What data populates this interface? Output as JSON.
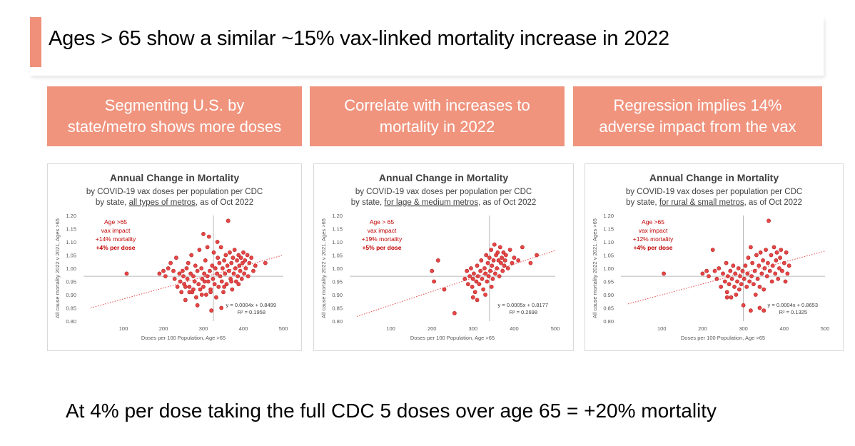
{
  "slide": {
    "title": "Ages > 65 show a similar ~15% vax-linked mortality increase in 2022",
    "headers": [
      "Segmenting U.S. by\nstate/metro shows more doses",
      "Correlate with increases to\nmortality in 2022",
      "Regression implies 14%\nadverse impact from the vax"
    ],
    "footer": "At 4% per dose taking the full CDC 5 doses over age 65 = +20% mortality",
    "accent_color": "#f0907a"
  },
  "chart_data": [
    {
      "type": "scatter",
      "title": "Annual Change in Mortality",
      "subtitle_line1": "by COVID-19 vax doses per population per CDC",
      "subtitle_prefix": "by state, ",
      "subtitle_underline": "all types of metros",
      "subtitle_suffix": ", as of Oct 2022",
      "xlabel": "Doses per 100 Population, Age >65",
      "ylabel": "All cause mortality 2022 v 2021, Ages >65",
      "xlim": [
        0,
        500
      ],
      "ylim": [
        0.8,
        1.2
      ],
      "xticks": [
        "100",
        "200",
        "300",
        "400",
        "500"
      ],
      "yticks": [
        "0.80",
        "0.85",
        "0.90",
        "0.95",
        "1.00",
        "1.05",
        "1.10",
        "1.15",
        "1.20"
      ],
      "annotation": [
        "Age >65",
        "vax impact",
        "+14% mortality",
        "+4% per dose"
      ],
      "equation": "y = 0.0004x + 0.8499",
      "r2": "R² = 0.1958",
      "trend": {
        "slope": 0.0004,
        "intercept": 0.8499
      },
      "ref_x": 325,
      "ref_y": 0.97,
      "point_color": "#e64646",
      "points": [
        [
          108,
          0.98
        ],
        [
          190,
          0.98
        ],
        [
          200,
          0.99
        ],
        [
          205,
          0.97
        ],
        [
          212,
          1.0
        ],
        [
          218,
          1.02
        ],
        [
          225,
          0.99
        ],
        [
          228,
          0.96
        ],
        [
          232,
          1.04
        ],
        [
          235,
          0.93
        ],
        [
          240,
          0.98
        ],
        [
          242,
          0.95
        ],
        [
          245,
          0.91
        ],
        [
          248,
          0.99
        ],
        [
          250,
          0.97
        ],
        [
          252,
          0.94
        ],
        [
          255,
          0.88
        ],
        [
          258,
          1.0
        ],
        [
          260,
          0.96
        ],
        [
          262,
          1.02
        ],
        [
          265,
          0.93
        ],
        [
          268,
          0.98
        ],
        [
          270,
          1.05
        ],
        [
          272,
          0.91
        ],
        [
          275,
          0.97
        ],
        [
          278,
          0.95
        ],
        [
          280,
          1.01
        ],
        [
          282,
          0.89
        ],
        [
          285,
          0.99
        ],
        [
          288,
          0.94
        ],
        [
          290,
          1.07
        ],
        [
          292,
          0.92
        ],
        [
          295,
          1.0
        ],
        [
          297,
          0.96
        ],
        [
          300,
          0.93
        ],
        [
          302,
          0.98
        ],
        [
          305,
          1.03
        ],
        [
          307,
          0.9
        ],
        [
          310,
          0.97
        ],
        [
          312,
          0.95
        ],
        [
          314,
          1.12
        ],
        [
          316,
          0.99
        ],
        [
          318,
          0.92
        ],
        [
          320,
          0.84
        ],
        [
          322,
          1.01
        ],
        [
          324,
          0.96
        ],
        [
          326,
          1.06
        ],
        [
          328,
          0.94
        ],
        [
          330,
          1.0
        ],
        [
          332,
          0.89
        ],
        [
          334,
          0.98
        ],
        [
          336,
          1.04
        ],
        [
          338,
          0.93
        ],
        [
          340,
          1.02
        ],
        [
          342,
          0.97
        ],
        [
          344,
          1.08
        ],
        [
          346,
          0.95
        ],
        [
          348,
          1.0
        ],
        [
          350,
          0.91
        ],
        [
          352,
          1.03
        ],
        [
          354,
          0.98
        ],
        [
          356,
          1.05
        ],
        [
          358,
          0.94
        ],
        [
          360,
          1.01
        ],
        [
          362,
          1.18
        ],
        [
          364,
          0.99
        ],
        [
          366,
          1.06
        ],
        [
          368,
          0.96
        ],
        [
          370,
          1.02
        ],
        [
          372,
          0.92
        ],
        [
          374,
          1.04
        ],
        [
          376,
          0.98
        ],
        [
          378,
          1.07
        ],
        [
          380,
          1.0
        ],
        [
          382,
          0.95
        ],
        [
          384,
          1.03
        ],
        [
          386,
          0.97
        ],
        [
          388,
          1.05
        ],
        [
          390,
          1.01
        ],
        [
          392,
          0.99
        ],
        [
          394,
          1.04
        ],
        [
          396,
          0.96
        ],
        [
          398,
          1.02
        ],
        [
          400,
          1.06
        ],
        [
          402,
          0.98
        ],
        [
          404,
          1.03
        ],
        [
          406,
          1.0
        ],
        [
          410,
          1.05
        ],
        [
          412,
          0.97
        ],
        [
          415,
          1.02
        ],
        [
          420,
          1.04
        ],
        [
          425,
          0.99
        ],
        [
          430,
          1.01
        ],
        [
          455,
          1.02
        ],
        [
          300,
          1.13
        ],
        [
          310,
          1.08
        ],
        [
          335,
          1.1
        ],
        [
          345,
          0.85
        ],
        [
          285,
          0.86
        ],
        [
          265,
          0.91
        ],
        [
          255,
          0.93
        ],
        [
          296,
          0.9
        ],
        [
          318,
          0.91
        ],
        [
          352,
          0.93
        ],
        [
          370,
          0.95
        ],
        [
          388,
          0.94
        ],
        [
          303,
          0.95
        ],
        [
          275,
          0.92
        ]
      ]
    },
    {
      "type": "scatter",
      "title": "Annual Change in Mortality",
      "subtitle_line1": "by COVID-19 vax doses per population per CDC",
      "subtitle_prefix": "by state, ",
      "subtitle_underline": "for lage & medium metros",
      "subtitle_suffix": ", as of Oct 2022",
      "xlabel": "Doses per 100 Population, Age >65",
      "ylabel": "All cause mortality 2022 v 2021, Ages >65",
      "xlim": [
        0,
        500
      ],
      "ylim": [
        0.8,
        1.2
      ],
      "xticks": [
        "100",
        "200",
        "300",
        "400",
        "500"
      ],
      "yticks": [
        "0.80",
        "0.85",
        "0.90",
        "0.95",
        "1.00",
        "1.05",
        "1.10",
        "1.15",
        "1.20"
      ],
      "annotation": [
        "Age > 65",
        "vax impact",
        "+19% mortality",
        "+5% per dose"
      ],
      "equation": "y = 0.0005x + 0.8177",
      "r2": "R² = 0.2698",
      "trend": {
        "slope": 0.0005,
        "intercept": 0.8177
      },
      "ref_x": 340,
      "ref_y": 0.97,
      "point_color": "#e64646",
      "points": [
        [
          200,
          0.99
        ],
        [
          205,
          0.95
        ],
        [
          215,
          1.03
        ],
        [
          230,
          0.92
        ],
        [
          255,
          0.83
        ],
        [
          280,
          0.96
        ],
        [
          285,
          0.99
        ],
        [
          288,
          0.94
        ],
        [
          292,
          0.97
        ],
        [
          295,
          1.0
        ],
        [
          298,
          0.93
        ],
        [
          300,
          0.96
        ],
        [
          302,
          0.98
        ],
        [
          305,
          0.91
        ],
        [
          308,
          0.95
        ],
        [
          310,
          1.01
        ],
        [
          312,
          0.97
        ],
        [
          315,
          0.94
        ],
        [
          318,
          0.99
        ],
        [
          320,
          1.03
        ],
        [
          322,
          0.96
        ],
        [
          325,
          0.92
        ],
        [
          328,
          1.0
        ],
        [
          330,
          0.98
        ],
        [
          332,
          1.05
        ],
        [
          334,
          0.95
        ],
        [
          336,
          1.02
        ],
        [
          338,
          0.97
        ],
        [
          340,
          1.04
        ],
        [
          342,
          0.99
        ],
        [
          344,
          1.07
        ],
        [
          346,
          1.01
        ],
        [
          348,
          0.96
        ],
        [
          350,
          1.03
        ],
        [
          352,
          1.09
        ],
        [
          354,
          0.98
        ],
        [
          356,
          1.05
        ],
        [
          358,
          1.0
        ],
        [
          360,
          1.06
        ],
        [
          362,
          1.03
        ],
        [
          364,
          0.97
        ],
        [
          366,
          1.08
        ],
        [
          368,
          1.02
        ],
        [
          370,
          1.04
        ],
        [
          372,
          0.99
        ],
        [
          374,
          1.06
        ],
        [
          376,
          1.01
        ],
        [
          378,
          1.03
        ],
        [
          380,
          1.05
        ],
        [
          385,
          1.0
        ],
        [
          390,
          1.07
        ],
        [
          395,
          1.02
        ],
        [
          400,
          1.04
        ],
        [
          410,
          1.03
        ],
        [
          420,
          1.08
        ],
        [
          440,
          1.02
        ],
        [
          455,
          1.05
        ],
        [
          310,
          0.88
        ],
        [
          330,
          0.9
        ],
        [
          345,
          0.93
        ],
        [
          300,
          0.89
        ]
      ]
    },
    {
      "type": "scatter",
      "title": "Annual Change in Mortality",
      "subtitle_line1": "by COVID-19 vax doses per population per CDC",
      "subtitle_prefix": "by state, ",
      "subtitle_underline": "for rural & small metros",
      "subtitle_suffix": ", as of Oct 2022",
      "xlabel": "Doses per 100 Population, Age >65",
      "ylabel": "All cause mortality 2022 v 2021, Ages >65",
      "xlim": [
        0,
        500
      ],
      "ylim": [
        0.8,
        1.2
      ],
      "xticks": [
        "100",
        "200",
        "300",
        "400",
        "500"
      ],
      "yticks": [
        "0.80",
        "0.85",
        "0.90",
        "0.95",
        "1.00",
        "1.05",
        "1.10",
        "1.15",
        "1.20"
      ],
      "annotation": [
        "Age >65",
        "vax impact",
        "+12% mortality",
        "+4% per dose"
      ],
      "equation": "y = 0.0004x + 0.8653",
      "r2": "R² = 0.1325",
      "trend": {
        "slope": 0.0004,
        "intercept": 0.8653
      },
      "ref_x": 300,
      "ref_y": 0.97,
      "point_color": "#e64646",
      "points": [
        [
          105,
          0.98
        ],
        [
          200,
          0.98
        ],
        [
          210,
          0.99
        ],
        [
          215,
          0.97
        ],
        [
          225,
          1.07
        ],
        [
          230,
          0.99
        ],
        [
          235,
          0.96
        ],
        [
          240,
          1.0
        ],
        [
          245,
          0.93
        ],
        [
          250,
          0.98
        ],
        [
          255,
          0.95
        ],
        [
          258,
          1.02
        ],
        [
          260,
          0.91
        ],
        [
          262,
          0.97
        ],
        [
          265,
          0.94
        ],
        [
          268,
          0.99
        ],
        [
          270,
          0.89
        ],
        [
          272,
          0.96
        ],
        [
          275,
          1.01
        ],
        [
          278,
          0.93
        ],
        [
          280,
          0.98
        ],
        [
          282,
          0.9
        ],
        [
          285,
          0.95
        ],
        [
          288,
          1.0
        ],
        [
          290,
          0.92
        ],
        [
          292,
          0.97
        ],
        [
          295,
          0.94
        ],
        [
          298,
          0.99
        ],
        [
          300,
          0.86
        ],
        [
          302,
          0.96
        ],
        [
          305,
          1.01
        ],
        [
          308,
          0.93
        ],
        [
          310,
          0.98
        ],
        [
          312,
          1.04
        ],
        [
          315,
          0.95
        ],
        [
          318,
          1.08
        ],
        [
          320,
          0.97
        ],
        [
          322,
          1.02
        ],
        [
          325,
          0.94
        ],
        [
          328,
          0.99
        ],
        [
          330,
          0.9
        ],
        [
          332,
          1.05
        ],
        [
          335,
          0.96
        ],
        [
          338,
          1.01
        ],
        [
          340,
          0.93
        ],
        [
          342,
          1.06
        ],
        [
          345,
          0.98
        ],
        [
          348,
          1.03
        ],
        [
          350,
          0.92
        ],
        [
          352,
          1.0
        ],
        [
          355,
          1.07
        ],
        [
          358,
          0.97
        ],
        [
          360,
          1.02
        ],
        [
          362,
          1.18
        ],
        [
          365,
          0.99
        ],
        [
          368,
          1.05
        ],
        [
          370,
          0.95
        ],
        [
          372,
          1.01
        ],
        [
          375,
          1.08
        ],
        [
          378,
          0.98
        ],
        [
          380,
          1.03
        ],
        [
          382,
          1.06
        ],
        [
          385,
          0.96
        ],
        [
          388,
          1.0
        ],
        [
          390,
          1.04
        ],
        [
          392,
          1.07
        ],
        [
          395,
          0.99
        ],
        [
          400,
          1.02
        ],
        [
          403,
          0.95
        ],
        [
          405,
          1.06
        ],
        [
          408,
          0.98
        ],
        [
          412,
          1.01
        ],
        [
          350,
          0.84
        ],
        [
          340,
          0.85
        ],
        [
          260,
          0.89
        ],
        [
          318,
          0.84
        ]
      ]
    }
  ]
}
